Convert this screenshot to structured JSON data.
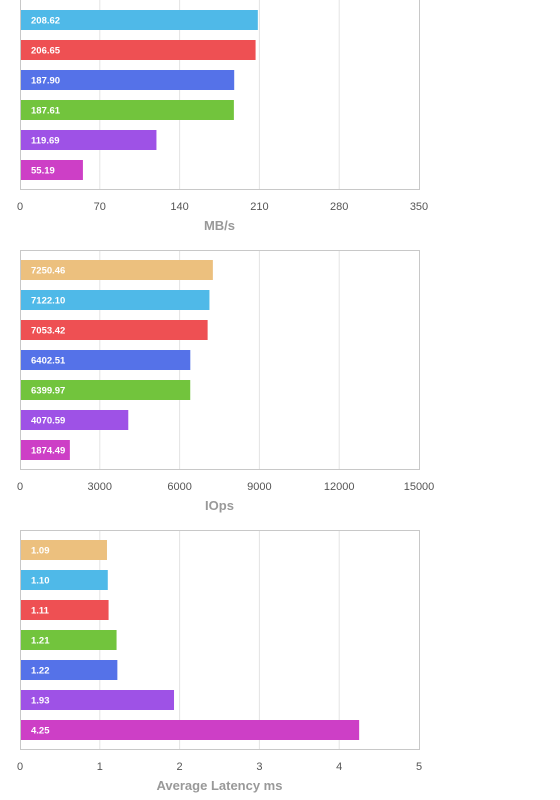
{
  "chart_data": [
    {
      "type": "bar",
      "orientation": "horizontal",
      "xlabel": "MB/s",
      "xlim": [
        0,
        350
      ],
      "xticks": [
        "0",
        "70",
        "140",
        "210",
        "280",
        "350"
      ],
      "grid": true,
      "bars": [
        {
          "value": 208.62,
          "label": "208.62",
          "color": "#4fb9e8"
        },
        {
          "value": 206.65,
          "label": "206.65",
          "color": "#ee5053"
        },
        {
          "value": 187.9,
          "label": "187.90",
          "color": "#5572e8"
        },
        {
          "value": 187.61,
          "label": "187.61",
          "color": "#72c43d"
        },
        {
          "value": 119.69,
          "label": "119.69",
          "color": "#9e52e6"
        },
        {
          "value": 55.19,
          "label": "55.19",
          "color": "#cd3fc6"
        }
      ]
    },
    {
      "type": "bar",
      "orientation": "horizontal",
      "xlabel": "IOps",
      "xlim": [
        0,
        15000
      ],
      "xticks": [
        "0",
        "3000",
        "6000",
        "9000",
        "12000",
        "15000"
      ],
      "grid": true,
      "bars": [
        {
          "value": 7250.46,
          "label": "7250.46",
          "color": "#ecc07e"
        },
        {
          "value": 7122.1,
          "label": "7122.10",
          "color": "#4fb9e8"
        },
        {
          "value": 7053.42,
          "label": "7053.42",
          "color": "#ee5053"
        },
        {
          "value": 6402.51,
          "label": "6402.51",
          "color": "#5572e8"
        },
        {
          "value": 6399.97,
          "label": "6399.97",
          "color": "#72c43d"
        },
        {
          "value": 4070.59,
          "label": "4070.59",
          "color": "#9e52e6"
        },
        {
          "value": 1874.49,
          "label": "1874.49",
          "color": "#cd3fc6"
        }
      ]
    },
    {
      "type": "bar",
      "orientation": "horizontal",
      "xlabel": "Average Latency ms",
      "xlim": [
        0,
        5
      ],
      "xticks": [
        "0",
        "1",
        "2",
        "3",
        "4",
        "5"
      ],
      "grid": true,
      "bars": [
        {
          "value": 1.09,
          "label": "1.09",
          "color": "#ecc07e"
        },
        {
          "value": 1.1,
          "label": "1.10",
          "color": "#4fb9e8"
        },
        {
          "value": 1.11,
          "label": "1.11",
          "color": "#ee5053"
        },
        {
          "value": 1.21,
          "label": "1.21",
          "color": "#72c43d"
        },
        {
          "value": 1.22,
          "label": "1.22",
          "color": "#5572e8"
        },
        {
          "value": 1.93,
          "label": "1.93",
          "color": "#9e52e6"
        },
        {
          "value": 4.25,
          "label": "4.25",
          "color": "#cd3fc6"
        }
      ]
    }
  ]
}
